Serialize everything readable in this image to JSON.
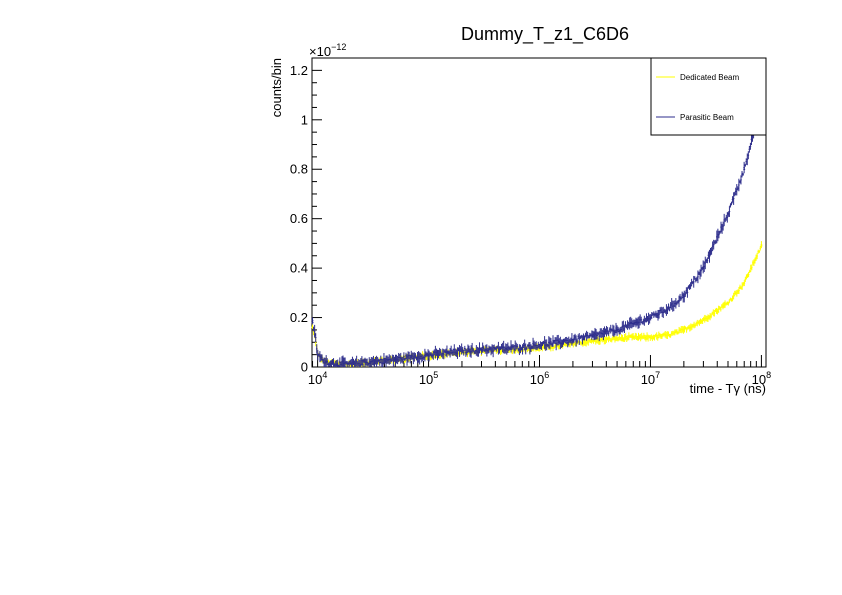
{
  "chart_data": {
    "type": "scatter",
    "title": "Dummy_T_z1_C6D6",
    "xlabel": "time - Tγ (ns)",
    "ylabel": "counts/bin",
    "y_exponent_label": "×10",
    "y_exponent_power": "−12",
    "xscale": "log",
    "xlim": [
      8900,
      110000000
    ],
    "ylim": [
      0,
      1.25
    ],
    "x_ticks": [
      {
        "value": 10000,
        "base": "10",
        "exp": "4"
      },
      {
        "value": 100000,
        "base": "10",
        "exp": "5"
      },
      {
        "value": 1000000,
        "base": "10",
        "exp": "6"
      },
      {
        "value": 10000000,
        "base": "10",
        "exp": "7"
      },
      {
        "value": 100000000,
        "base": "10",
        "exp": "8"
      }
    ],
    "y_ticks": [
      {
        "value": 0,
        "label": "0"
      },
      {
        "value": 0.2,
        "label": "0.2"
      },
      {
        "value": 0.4,
        "label": "0.4"
      },
      {
        "value": 0.6,
        "label": "0.6"
      },
      {
        "value": 0.8,
        "label": "0.8"
      },
      {
        "value": 1.0,
        "label": "1"
      },
      {
        "value": 1.2,
        "label": "1.2"
      }
    ],
    "legend": {
      "placement": "top-right"
    },
    "series": [
      {
        "name": "Dedicated Beam",
        "color": "#ffff00",
        "x": [
          9000,
          9500,
          10000,
          11000,
          12000,
          15000,
          20000,
          30000,
          50000,
          70000,
          100000,
          150000,
          200000,
          300000,
          500000,
          700000,
          1000000,
          1500000,
          2000000,
          3000000,
          5000000,
          7000000,
          10000000,
          15000000,
          20000000,
          30000000,
          50000000,
          70000000,
          100000000
        ],
        "y": [
          0.16,
          0.12,
          0.05,
          0.03,
          0.02,
          0.012,
          0.012,
          0.02,
          0.03,
          0.04,
          0.045,
          0.055,
          0.06,
          0.065,
          0.07,
          0.072,
          0.078,
          0.085,
          0.095,
          0.105,
          0.115,
          0.12,
          0.12,
          0.13,
          0.15,
          0.19,
          0.26,
          0.34,
          0.49
        ]
      },
      {
        "name": "Parasitic Beam",
        "color": "#2e2e8c",
        "x": [
          9000,
          9500,
          10000,
          11000,
          12000,
          15000,
          20000,
          30000,
          50000,
          70000,
          100000,
          150000,
          200000,
          300000,
          500000,
          700000,
          1000000,
          1500000,
          2000000,
          3000000,
          5000000,
          7000000,
          10000000,
          15000000,
          20000000,
          30000000,
          50000000,
          70000000,
          85000000
        ],
        "y": [
          0.18,
          0.13,
          0.05,
          0.03,
          0.02,
          0.012,
          0.012,
          0.02,
          0.03,
          0.04,
          0.048,
          0.058,
          0.065,
          0.07,
          0.075,
          0.08,
          0.09,
          0.1,
          0.11,
          0.125,
          0.15,
          0.175,
          0.2,
          0.24,
          0.29,
          0.4,
          0.62,
          0.8,
          0.95
        ]
      }
    ]
  }
}
